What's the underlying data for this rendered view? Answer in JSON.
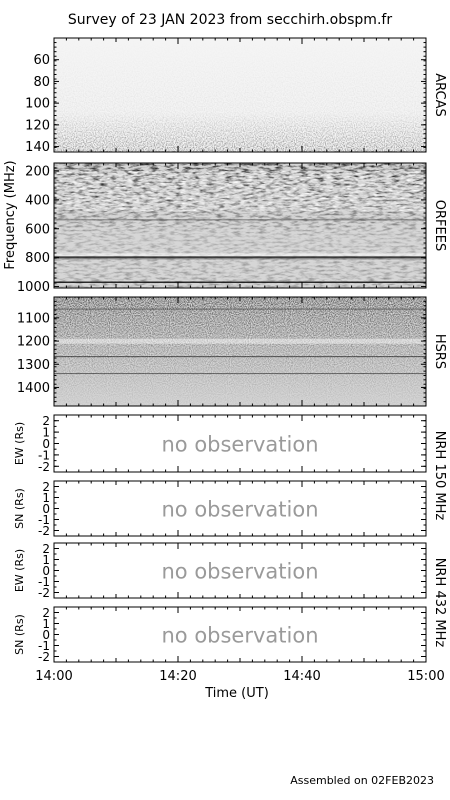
{
  "title": "Survey of 23 JAN 2023 from secchirh.obspm.fr",
  "footer": "Assembled on 02FEB2023",
  "shared_xlabel": "Time (UT)",
  "shared_ylabel": "Frequency (MHz)",
  "no_obs_text": "no observation",
  "colors": {
    "axis": "#000000",
    "no_obs": "#9a9a9a",
    "background": "#ffffff"
  },
  "chart_data": [
    {
      "type": "heatmap",
      "instrument": "ARCAS",
      "yticks": [
        60,
        80,
        100,
        120,
        140
      ],
      "ylim": [
        40,
        145
      ],
      "xticks": [
        "14:00",
        "14:20",
        "14:40",
        "15:00"
      ],
      "xlim": [
        "14:00",
        "15:00"
      ]
    },
    {
      "type": "heatmap",
      "instrument": "ORFEES",
      "yticks": [
        200,
        400,
        600,
        800,
        1000
      ],
      "ylim": [
        145,
        1010
      ],
      "xticks": [
        "14:00",
        "14:20",
        "14:40",
        "15:00"
      ],
      "xlim": [
        "14:00",
        "15:00"
      ]
    },
    {
      "type": "heatmap",
      "instrument": "HSRS",
      "yticks": [
        1100,
        1200,
        1300,
        1400
      ],
      "ylim": [
        1010,
        1480
      ],
      "xticks": [
        "14:00",
        "14:20",
        "14:40",
        "15:00"
      ],
      "xlim": [
        "14:00",
        "15:00"
      ]
    },
    {
      "type": "line",
      "instrument": "NRH",
      "ylabel": "EW (Rs)",
      "yticks": [
        2,
        1,
        0,
        -1,
        -2
      ],
      "ylim": [
        -2.5,
        2.5
      ],
      "xticks": [
        "14:00",
        "14:20",
        "14:40",
        "15:00"
      ],
      "xlim": [
        "14:00",
        "15:00"
      ],
      "status": "no observation"
    },
    {
      "type": "line",
      "instrument": "NRH",
      "ylabel": "SN (Rs)",
      "yticks": [
        2,
        1,
        0,
        -1,
        -2
      ],
      "ylim": [
        -2.5,
        2.5
      ],
      "xticks": [
        "14:00",
        "14:20",
        "14:40",
        "15:00"
      ],
      "xlim": [
        "14:00",
        "15:00"
      ],
      "status": "no observation"
    },
    {
      "type": "line",
      "instrument": "NRH",
      "ylabel": "EW (Rs)",
      "yticks": [
        2,
        1,
        0,
        -1,
        -2
      ],
      "ylim": [
        -2.5,
        2.5
      ],
      "xticks": [
        "14:00",
        "14:20",
        "14:40",
        "15:00"
      ],
      "xlim": [
        "14:00",
        "15:00"
      ],
      "status": "no observation"
    },
    {
      "type": "line",
      "instrument": "NRH",
      "ylabel": "SN (Rs)",
      "yticks": [
        2,
        1,
        0,
        -1,
        -2
      ],
      "ylim": [
        -2.5,
        2.5
      ],
      "xticks": [
        "14:00",
        "14:20",
        "14:40",
        "15:00"
      ],
      "xlim": [
        "14:00",
        "15:00"
      ],
      "status": "no observation"
    }
  ],
  "right_labels": [
    "ARCAS",
    "ORFEES",
    "HSRS",
    "NRH 150 MHz",
    "NRH 432 MHz"
  ]
}
